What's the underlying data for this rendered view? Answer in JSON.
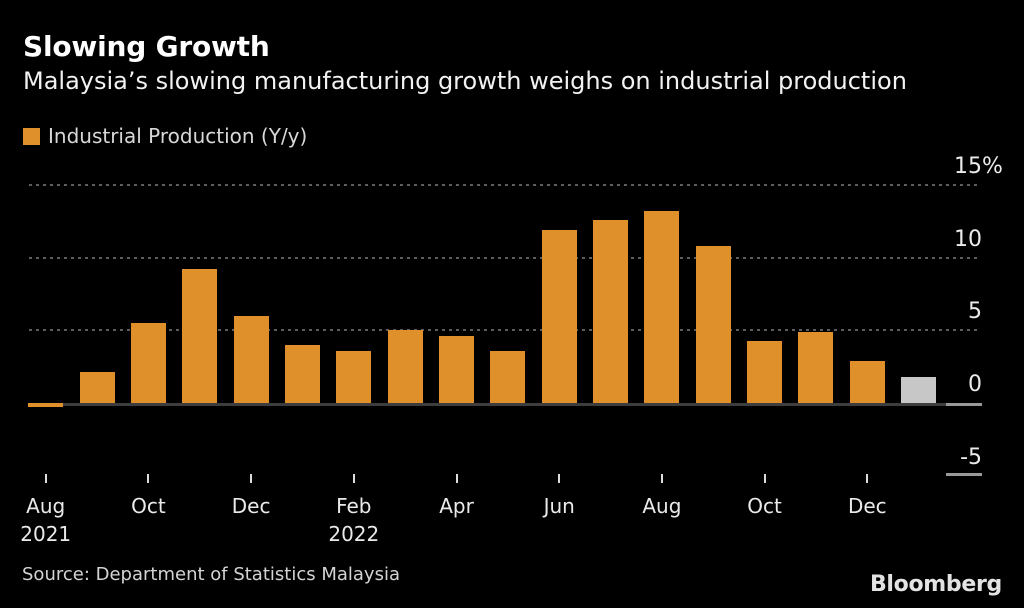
{
  "header": {
    "title": "Slowing Growth",
    "subtitle": "Malaysia’s slowing manufacturing growth weighs on industrial production"
  },
  "footer": {
    "source": "Source: Department of Statistics Malaysia",
    "brand": "Bloomberg"
  },
  "colors": {
    "background": "#000000",
    "bar_orange": "#DF902B",
    "bar_gray": "#C7C7C7",
    "gridline": "#5C5C5C",
    "axis_line": "#3D3D3D",
    "text": "#EBEBEB"
  },
  "chart_data": {
    "type": "bar",
    "title": "Slowing Growth",
    "subtitle": "Malaysia’s slowing manufacturing growth weighs on industrial production",
    "legend": [
      {
        "label": "Industrial Production (Y/y)",
        "color": "#DF902B"
      }
    ],
    "legend_position": "top-left",
    "grid": "horizontal dotted lines at 5, 10, 15",
    "categories": [
      "Aug 2021",
      "Sep 2021",
      "Oct 2021",
      "Nov 2021",
      "Dec 2021",
      "Jan 2022",
      "Feb 2022",
      "Mar 2022",
      "Apr 2022",
      "May 2022",
      "Jun 2022",
      "Jul 2022",
      "Aug 2022",
      "Sep 2022",
      "Oct 2022",
      "Nov 2022",
      "Dec 2022",
      "Jan 2023"
    ],
    "series": [
      {
        "name": "Industrial Production (Y/y)",
        "color": "#DF902B",
        "values": [
          -0.3,
          2.1,
          5.5,
          9.2,
          6.0,
          4.0,
          3.6,
          5.0,
          4.6,
          3.6,
          11.9,
          12.6,
          13.2,
          10.8,
          4.3,
          4.9,
          2.9,
          1.8
        ]
      }
    ],
    "latest_bar": {
      "index": 17,
      "color": "#C7C7C7"
    },
    "ylabel": "",
    "xlabel": "",
    "ylim": [
      -5,
      15
    ],
    "y_axis": {
      "side": "right",
      "ticks": [
        {
          "value": 15,
          "label": "15",
          "suffix": "%",
          "gridline": true,
          "dash": false
        },
        {
          "value": 10,
          "label": "10",
          "suffix": "",
          "gridline": true,
          "dash": false
        },
        {
          "value": 5,
          "label": "5",
          "suffix": "",
          "gridline": true,
          "dash": false
        },
        {
          "value": 0,
          "label": "0",
          "suffix": "",
          "gridline": false,
          "dash": true
        },
        {
          "value": -5,
          "label": "-5",
          "suffix": "",
          "gridline": false,
          "dash": true
        }
      ]
    },
    "x_axis": {
      "ticks": [
        {
          "index": 0,
          "lines": [
            "Aug",
            "2021"
          ]
        },
        {
          "index": 2,
          "lines": [
            "Oct"
          ]
        },
        {
          "index": 4,
          "lines": [
            "Dec"
          ]
        },
        {
          "index": 6,
          "lines": [
            "Feb",
            "2022"
          ]
        },
        {
          "index": 8,
          "lines": [
            "Apr"
          ]
        },
        {
          "index": 10,
          "lines": [
            "Jun"
          ]
        },
        {
          "index": 12,
          "lines": [
            "Aug"
          ]
        },
        {
          "index": 14,
          "lines": [
            "Oct"
          ]
        },
        {
          "index": 16,
          "lines": [
            "Dec"
          ]
        }
      ]
    }
  }
}
